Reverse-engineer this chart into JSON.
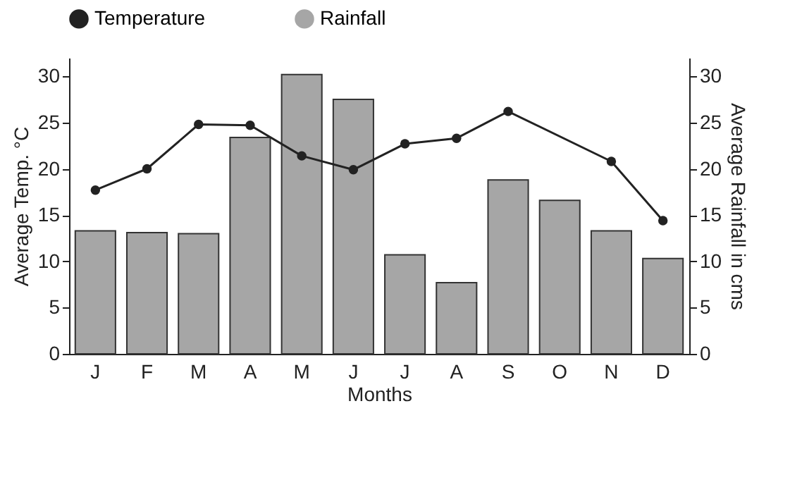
{
  "chart_data": {
    "type": "bar",
    "xlabel": "Months",
    "ylabel": "Average Temp. °C",
    "y2label": "Average Rainfall in cms",
    "categories": [
      "J",
      "F",
      "M",
      "A",
      "M",
      "J",
      "J",
      "A",
      "S",
      "O",
      "N",
      "D"
    ],
    "series": [
      {
        "name": "Temperature",
        "type": "line",
        "color": "#222222",
        "values": [
          17.7,
          20.0,
          24.8,
          24.7,
          21.4,
          19.9,
          22.7,
          23.3,
          26.2,
          null,
          20.8,
          14.4
        ]
      },
      {
        "name": "Rainfall",
        "axis": "y2",
        "color": "#a6a6a6",
        "values": [
          13.3,
          13.1,
          13.0,
          23.4,
          30.2,
          27.5,
          10.7,
          7.7,
          18.8,
          16.6,
          13.3,
          10.3
        ]
      }
    ],
    "ylim": [
      0,
      32
    ],
    "yticks": [
      0,
      5,
      10,
      15,
      20,
      25,
      30
    ],
    "y2lim": [
      0,
      32
    ],
    "y2ticks": [
      0,
      5,
      10,
      15,
      20,
      25,
      30
    ],
    "marker": "circle",
    "grid": false,
    "legend": "top"
  }
}
